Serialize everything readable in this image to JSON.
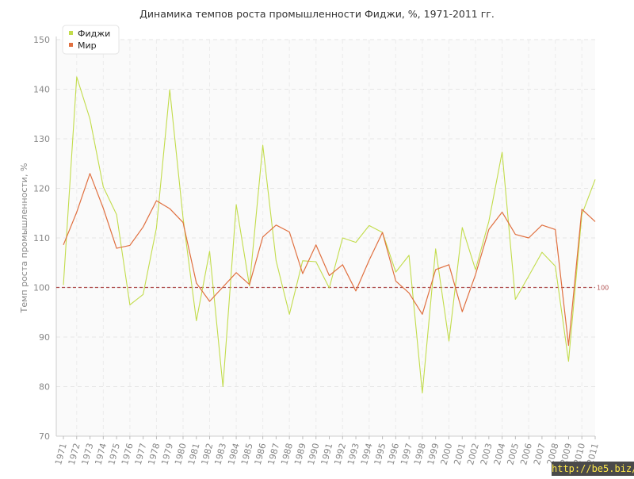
{
  "chart_data": {
    "type": "line",
    "title": "Динамика темпов роста промышленности Фиджи, %, 1971-2011 гг.",
    "ylabel": "Темп роста промышленности, %",
    "xlabel": "",
    "ylim": [
      70,
      150
    ],
    "yticks": [
      70,
      80,
      90,
      100,
      110,
      120,
      130,
      140,
      150
    ],
    "grid": true,
    "legend_position": "top-left",
    "categories": [
      "1971",
      "1972",
      "1973",
      "1974",
      "1975",
      "1976",
      "1977",
      "1978",
      "1979",
      "1980",
      "1981",
      "1982",
      "1983",
      "1984",
      "1985",
      "1986",
      "1987",
      "1988",
      "1989",
      "1990",
      "1991",
      "1992",
      "1993",
      "1994",
      "1995",
      "1996",
      "1997",
      "1998",
      "1999",
      "2000",
      "2001",
      "2002",
      "2003",
      "2004",
      "2005",
      "2006",
      "2007",
      "2008",
      "2009",
      "2010",
      "2011"
    ],
    "series": [
      {
        "name": "Фиджи",
        "color": "#c2dc4b",
        "values": [
          100.5,
          142.5,
          134,
          120.3,
          114.7,
          96.5,
          98.6,
          112,
          139.9,
          114,
          93.3,
          107.3,
          80,
          116.7,
          100.3,
          128.7,
          105.4,
          94.6,
          105.4,
          105.2,
          99.9,
          110.0,
          109.1,
          112.5,
          111.1,
          103.1,
          106.5,
          78.7,
          107.8,
          89.2,
          112.1,
          103.6,
          113.3,
          127.3,
          97.6,
          102.3,
          107.1,
          104.3,
          85.1,
          114.7,
          121.8
        ]
      },
      {
        "name": "Мир",
        "color": "#e07040",
        "values": [
          108.6,
          115.2,
          123,
          116,
          107.9,
          108.5,
          112.2,
          117.5,
          115.9,
          113.1,
          100.9,
          97.2,
          100.1,
          103,
          100.6,
          110.2,
          112.6,
          111.2,
          102.8,
          108.6,
          102.4,
          104.6,
          99.3,
          105.5,
          111.1,
          101.3,
          98.9,
          94.6,
          103.6,
          104.6,
          95.1,
          102.6,
          111.7,
          115.2,
          110.7,
          110,
          112.6,
          111.7,
          88.3,
          115.8,
          113.3
        ]
      }
    ],
    "reference_line": {
      "value": 100,
      "label": "100",
      "color": "#b05050"
    }
  },
  "watermark": "http://be5.biz/"
}
